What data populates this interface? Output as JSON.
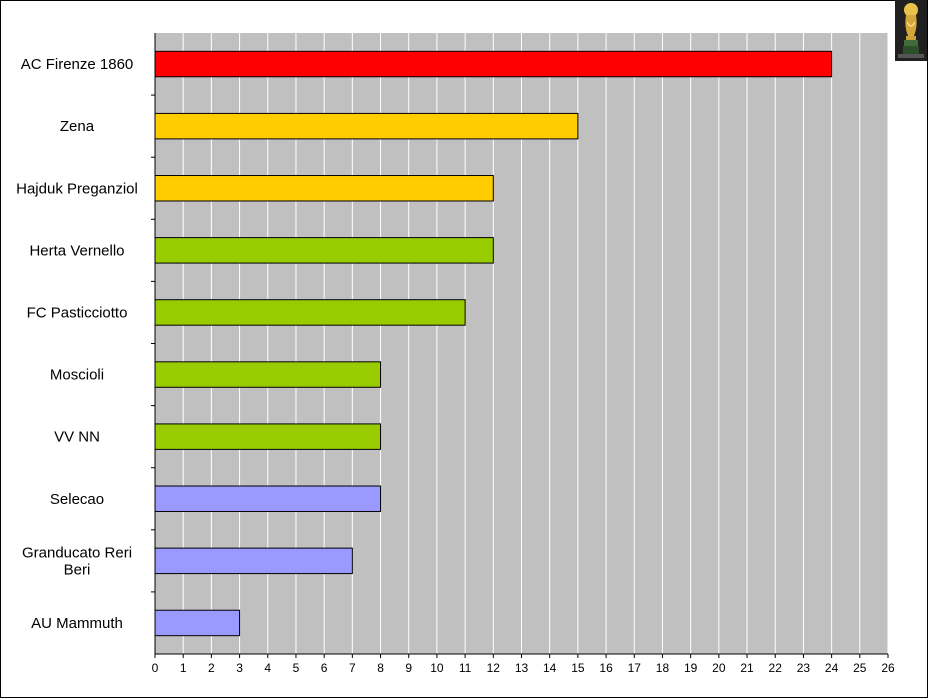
{
  "chart_data": {
    "type": "bar",
    "orientation": "horizontal",
    "categories": [
      "AC Firenze 1860",
      "Zena",
      "Hajduk Preganziol",
      "Herta Vernello",
      "FC Pasticciotto",
      "Moscioli",
      "VV NN",
      "Selecao",
      "Granducato Reri Beri",
      "AU Mammuth"
    ],
    "values": [
      24,
      15,
      12,
      12,
      11,
      8,
      8,
      8,
      7,
      3
    ],
    "colors": [
      "#ff0000",
      "#ffcc00",
      "#ffcc00",
      "#99cc00",
      "#99cc00",
      "#99cc00",
      "#99cc00",
      "#9999ff",
      "#9999ff",
      "#9999ff"
    ],
    "xlim": [
      0,
      26
    ],
    "x_ticks": [
      0,
      1,
      2,
      3,
      4,
      5,
      6,
      7,
      8,
      9,
      10,
      11,
      12,
      13,
      14,
      15,
      16,
      17,
      18,
      19,
      20,
      21,
      22,
      23,
      24,
      25,
      26
    ],
    "grid": "vertical",
    "plot_background": "#c0c0c0",
    "title": "",
    "xlabel": "",
    "ylabel": ""
  },
  "icons": {
    "corner": "trophy-icon"
  }
}
